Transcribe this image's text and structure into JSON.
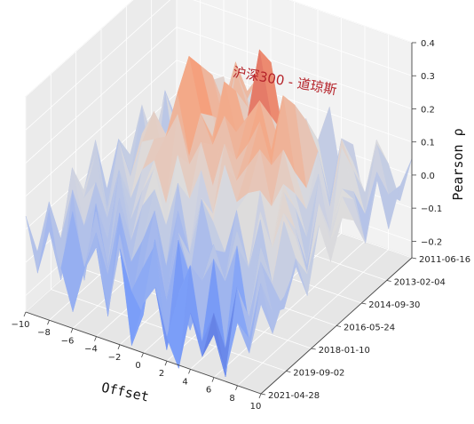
{
  "chart_data": {
    "type": "surface3d",
    "title": "沪深300 - 道琼斯",
    "xlabel": "Offset",
    "ylabel": "",
    "zlabel": "Pearson ρ",
    "x_ticks": [
      "−10",
      "−8",
      "−6",
      "−4",
      "−2",
      "0",
      "2",
      "4",
      "6",
      "8",
      "10"
    ],
    "y_ticks": [
      "2011-06-16",
      "2013-02-04",
      "2014-09-30",
      "2016-05-24",
      "2018-01-10",
      "2019-09-02",
      "2021-04-28"
    ],
    "z_ticks": [
      "−0.2",
      "−0.1",
      "0.0",
      "0.1",
      "0.2",
      "0.3",
      "0.4"
    ],
    "xlim": [
      -10,
      10
    ],
    "zlim": [
      -0.25,
      0.4
    ],
    "colormap": "coolwarm",
    "grid": true,
    "values": [
      [
        -0.08,
        0.05,
        -0.12,
        0.02,
        0.1,
        -0.05,
        0.08,
        0.14,
        -0.1,
        0.04,
        -0.15,
        0.06,
        -0.02,
        0.12,
        -0.08,
        0.03,
        -0.14,
        0.07,
        0.01,
        -0.09,
        0.05
      ],
      [
        0.04,
        -0.1,
        0.08,
        -0.06,
        0.12,
        0.06,
        0.2,
        0.1,
        -0.04,
        0.16,
        0.02,
        -0.1,
        0.1,
        0.05,
        -0.12,
        0.08,
        0.02,
        -0.06,
        0.1,
        -0.04,
        0.0
      ],
      [
        -0.12,
        0.06,
        -0.02,
        0.1,
        -0.08,
        0.18,
        0.05,
        0.22,
        0.12,
        -0.06,
        0.28,
        0.08,
        -0.04,
        0.14,
        0.06,
        -0.1,
        0.12,
        0.04,
        -0.08,
        0.06,
        -0.1
      ],
      [
        0.06,
        -0.04,
        0.12,
        -0.1,
        0.05,
        0.24,
        0.1,
        -0.02,
        0.2,
        0.08,
        0.35,
        0.16,
        0.06,
        0.22,
        -0.02,
        0.1,
        -0.06,
        0.14,
        0.02,
        -0.12,
        0.08
      ],
      [
        -0.06,
        0.1,
        -0.14,
        0.04,
        0.12,
        0.3,
        0.14,
        0.08,
        0.26,
        0.12,
        0.18,
        0.24,
        0.1,
        0.28,
        0.06,
        -0.04,
        0.08,
        -0.1,
        0.06,
        0.04,
        -0.08
      ],
      [
        0.02,
        -0.08,
        0.06,
        0.14,
        -0.02,
        0.22,
        0.04,
        0.18,
        0.1,
        0.2,
        0.08,
        0.14,
        0.22,
        0.1,
        0.16,
        0.04,
        -0.08,
        0.1,
        -0.04,
        0.08,
        0.02
      ],
      [
        -0.1,
        0.04,
        -0.04,
        0.08,
        0.1,
        0.12,
        0.2,
        0.06,
        0.14,
        0.02,
        0.16,
        0.06,
        0.12,
        0.18,
        0.02,
        0.1,
        0.04,
        -0.12,
        0.08,
        -0.02,
        0.06
      ],
      [
        0.08,
        -0.12,
        0.1,
        -0.06,
        0.04,
        0.08,
        -0.04,
        0.12,
        0.0,
        0.1,
        -0.02,
        0.14,
        0.04,
        0.08,
        0.1,
        -0.06,
        0.12,
        0.02,
        -0.1,
        0.12,
        -0.04
      ],
      [
        -0.04,
        0.08,
        -0.1,
        0.06,
        -0.08,
        0.02,
        0.1,
        -0.06,
        0.08,
        -0.12,
        0.06,
        0.0,
        -0.08,
        0.06,
        -0.1,
        0.08,
        -0.02,
        0.1,
        0.04,
        -0.06,
        0.1
      ],
      [
        0.06,
        -0.02,
        0.04,
        -0.12,
        0.1,
        -0.1,
        0.02,
        0.08,
        -0.14,
        0.04,
        -0.08,
        0.1,
        -0.04,
        -0.12,
        0.04,
        -0.06,
        0.1,
        -0.08,
        0.12,
        0.02,
        -0.08
      ],
      [
        -0.14,
        0.1,
        -0.06,
        0.02,
        -0.16,
        0.06,
        -0.12,
        -0.04,
        0.06,
        -0.2,
        0.02,
        -0.1,
        -0.14,
        0.02,
        -0.08,
        0.04,
        -0.18,
        0.06,
        -0.04,
        -0.1,
        0.04
      ],
      [
        0.02,
        -0.08,
        0.08,
        -0.18,
        0.04,
        -0.14,
        0.06,
        -0.2,
        -0.08,
        0.0,
        -0.16,
        0.04,
        -0.22,
        -0.06,
        0.02,
        -0.24,
        -0.04,
        -0.12,
        0.06,
        -0.08,
        -0.02
      ],
      [
        -0.1,
        0.04,
        -0.16,
        0.06,
        -0.1,
        0.02,
        -0.22,
        0.04,
        -0.12,
        -0.18,
        0.06,
        -0.26,
        -0.08,
        0.02,
        -0.2,
        -0.1,
        -0.28,
        0.0,
        -0.14,
        0.04,
        -0.1
      ],
      [
        0.04,
        -0.12,
        0.02,
        -0.08,
        -0.2,
        -0.06,
        0.02,
        -0.16,
        0.04,
        -0.24,
        -0.1,
        -0.04,
        -0.18,
        -0.26,
        -0.08,
        -0.2,
        -0.12,
        -0.22,
        -0.06,
        -0.14,
        0.02
      ]
    ]
  }
}
